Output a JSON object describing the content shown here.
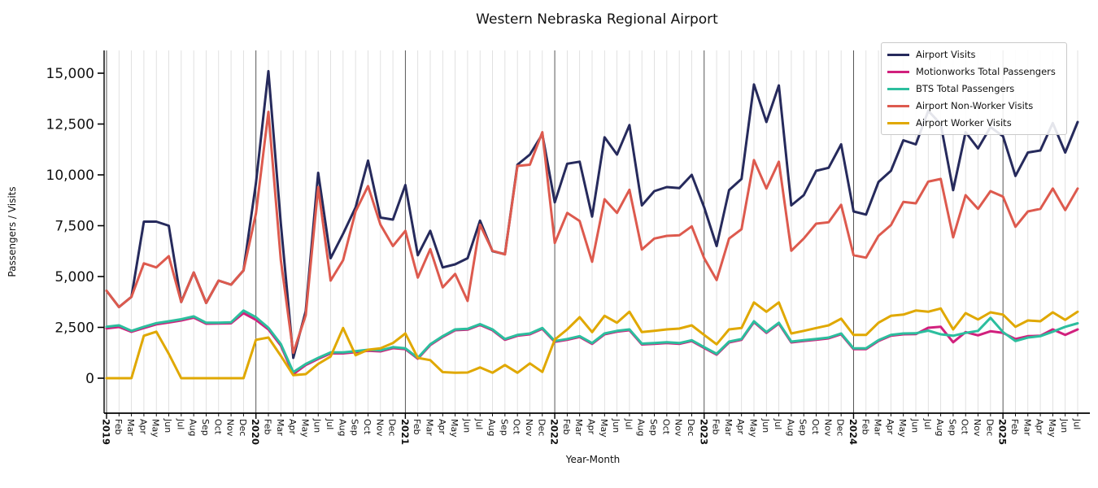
{
  "chart_data": {
    "type": "line",
    "title": "Western Nebraska Regional Airport",
    "xlabel": "Year-Month",
    "ylabel": "Passengers / Visits",
    "legend_position": "upper right",
    "grid": "vertical monthly gridlines, dark line at each January",
    "ylim": [
      -1700,
      16100
    ],
    "yticks": [
      0,
      2500,
      5000,
      7500,
      10000,
      12500,
      15000
    ],
    "ytick_labels": [
      "0",
      "2,500",
      "5,000",
      "7,500",
      "10,000",
      "12,500",
      "15,000"
    ],
    "x_tick_labels": [
      "2019",
      "Feb",
      "Mar",
      "Apr",
      "May",
      "Jun",
      "Jul",
      "Aug",
      "Sep",
      "Oct",
      "Nov",
      "Dec",
      "2020",
      "Feb",
      "Mar",
      "Apr",
      "May",
      "Jun",
      "Jul",
      "Aug",
      "Sep",
      "Oct",
      "Nov",
      "Dec",
      "2021",
      "Feb",
      "Mar",
      "Apr",
      "May",
      "Jun",
      "Jul",
      "Aug",
      "Sep",
      "Oct",
      "Nov",
      "Dec",
      "2022",
      "Feb",
      "Mar",
      "Apr",
      "May",
      "Jun",
      "Jul",
      "Aug",
      "Sep",
      "Oct",
      "Nov",
      "Dec",
      "2023",
      "Feb",
      "Mar",
      "Apr",
      "May",
      "Jun",
      "Jul",
      "Aug",
      "Sep",
      "Oct",
      "Nov",
      "Dec",
      "2024",
      "Feb",
      "Mar",
      "Apr",
      "May",
      "Jun",
      "Jul",
      "Aug",
      "Sep",
      "Oct",
      "Nov",
      "Dec",
      "2025",
      "Feb",
      "Mar",
      "Apr",
      "May",
      "Jun",
      "Jul"
    ],
    "series": [
      {
        "name": "Airport Visits",
        "color": "#262A5C",
        "values": [
          4300,
          3500,
          4000,
          7700,
          7700,
          7500,
          3750,
          5200,
          3700,
          4800,
          4600,
          5300,
          9600,
          15100,
          7600,
          1000,
          3300,
          10100,
          5900,
          7100,
          8400,
          10700,
          7900,
          7800,
          9500,
          6050,
          7250,
          5450,
          5600,
          5900,
          7750,
          6250,
          6100,
          10500,
          11000,
          12000,
          8650,
          10550,
          10650,
          7950,
          11850,
          11000,
          12450,
          8500,
          9200,
          9400,
          9350,
          10000,
          8400,
          6500,
          9250,
          9800,
          14450,
          12600,
          14400,
          8500,
          9000,
          10200,
          10350,
          11500,
          8200,
          8050,
          9650,
          10200,
          11700,
          11500,
          13150,
          12500,
          9250,
          12100,
          11300,
          12350,
          11900,
          9950,
          11100,
          11200,
          12550,
          11100,
          12600
        ]
      },
      {
        "name": "Motionworks Total Passengers",
        "color": "#D1207D",
        "values": [
          2450,
          2520,
          2280,
          2470,
          2650,
          2740,
          2840,
          2980,
          2680,
          2690,
          2700,
          3200,
          2870,
          2400,
          1600,
          200,
          650,
          950,
          1220,
          1220,
          1280,
          1350,
          1320,
          1480,
          1430,
          960,
          1630,
          2030,
          2360,
          2390,
          2620,
          2360,
          1890,
          2090,
          2160,
          2430,
          1790,
          1890,
          2030,
          1690,
          2160,
          2290,
          2360,
          1660,
          1690,
          1730,
          1690,
          1830,
          1490,
          1160,
          1760,
          1890,
          2760,
          2230,
          2690,
          1760,
          1830,
          1890,
          1960,
          2160,
          1430,
          1430,
          1830,
          2090,
          2160,
          2170,
          2480,
          2530,
          1770,
          2270,
          2110,
          2310,
          2230,
          1930,
          2070,
          2090,
          2400,
          2130,
          2400
        ]
      },
      {
        "name": "BTS Total Passengers",
        "color": "#2CBE9E",
        "values": [
          2530,
          2600,
          2330,
          2530,
          2710,
          2800,
          2900,
          3040,
          2730,
          2730,
          2750,
          3330,
          3000,
          2480,
          1680,
          300,
          700,
          1000,
          1270,
          1270,
          1330,
          1400,
          1370,
          1530,
          1470,
          1000,
          1670,
          2070,
          2400,
          2430,
          2660,
          2400,
          1930,
          2130,
          2200,
          2470,
          1830,
          1930,
          2070,
          1730,
          2200,
          2330,
          2400,
          1700,
          1730,
          1770,
          1730,
          1870,
          1530,
          1200,
          1800,
          1930,
          2800,
          2270,
          2730,
          1800,
          1870,
          1930,
          2000,
          2200,
          1470,
          1470,
          1870,
          2130,
          2200,
          2210,
          2340,
          2160,
          2090,
          2230,
          2330,
          2970,
          2270,
          1830,
          2000,
          2070,
          2290,
          2530,
          2700
        ]
      },
      {
        "name": "Airport Non-Worker Visits",
        "color": "#DD5A4E",
        "values": [
          4300,
          3500,
          4000,
          5650,
          5450,
          6000,
          3750,
          5200,
          3700,
          4800,
          4600,
          5300,
          8100,
          13100,
          5800,
          1250,
          3100,
          9400,
          4800,
          5800,
          8200,
          9450,
          7550,
          6500,
          7250,
          4950,
          6350,
          4470,
          5130,
          3800,
          7550,
          6270,
          6090,
          10440,
          10500,
          12100,
          6650,
          8130,
          7730,
          5730,
          8800,
          8130,
          9270,
          6330,
          6870,
          7000,
          7030,
          7470,
          5900,
          4830,
          6870,
          7330,
          10730,
          9330,
          10650,
          6270,
          6870,
          7600,
          7670,
          8530,
          6050,
          5930,
          7000,
          7530,
          8670,
          8600,
          9670,
          9800,
          6930,
          9000,
          8330,
          9200,
          8930,
          7450,
          8200,
          8330,
          9330,
          8270,
          9330
        ]
      },
      {
        "name": "Airport Worker Visits",
        "color": "#E0A800",
        "values": [
          0,
          0,
          0,
          2090,
          2290,
          1200,
          0,
          0,
          0,
          0,
          0,
          0,
          1890,
          2000,
          1100,
          150,
          200,
          700,
          1070,
          2470,
          1130,
          1400,
          1470,
          1730,
          2200,
          1000,
          890,
          300,
          270,
          280,
          530,
          270,
          650,
          270,
          730,
          310,
          1900,
          2400,
          3000,
          2270,
          3070,
          2730,
          3270,
          2270,
          2330,
          2400,
          2440,
          2600,
          2130,
          1670,
          2400,
          2470,
          3730,
          3270,
          3730,
          2200,
          2330,
          2470,
          2600,
          2930,
          2130,
          2130,
          2730,
          3070,
          3130,
          3330,
          3270,
          3430,
          2400,
          3200,
          2890,
          3240,
          3130,
          2530,
          2840,
          2800,
          3240,
          2870,
          3270
        ]
      }
    ],
    "axis_colors": {
      "spine": "#000000",
      "month_gridline": "#dadada",
      "year_gridline": "#454545",
      "tick_label": "#111111"
    }
  }
}
